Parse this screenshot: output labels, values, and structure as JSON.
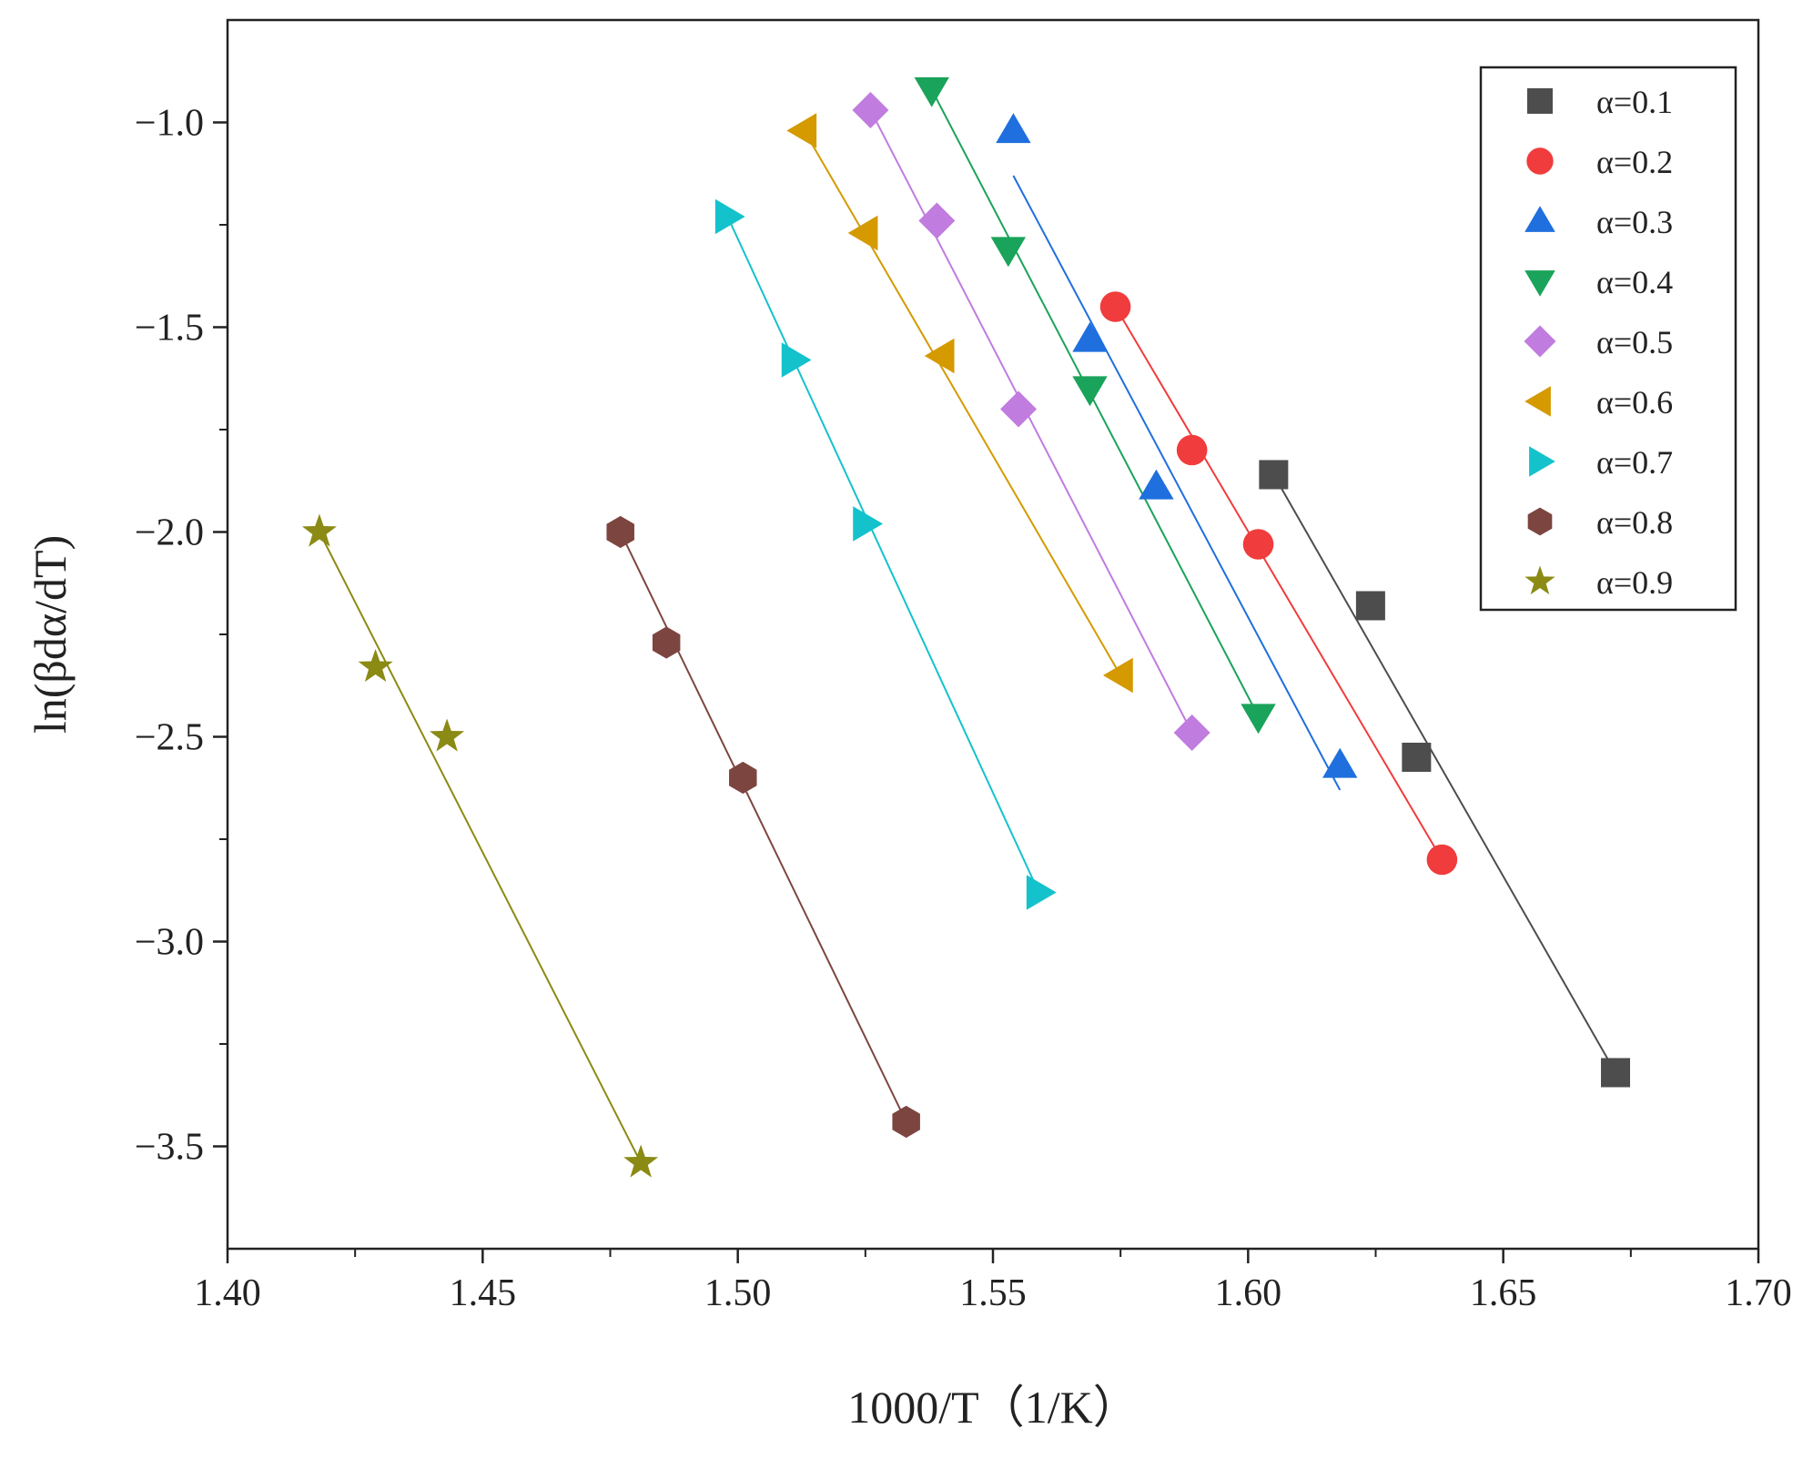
{
  "chart_data": {
    "type": "scatter",
    "xlabel": "1000/T（1/K）",
    "ylabel": "ln(βdα/dT)",
    "xlim": [
      1.4,
      1.7
    ],
    "ylim": [
      -3.75,
      -0.75
    ],
    "xticks": [
      1.4,
      1.45,
      1.5,
      1.55,
      1.6,
      1.65,
      1.7
    ],
    "xtick_labels": [
      "1.40",
      "1.45",
      "1.50",
      "1.55",
      "1.60",
      "1.65",
      "1.70"
    ],
    "yticks": [
      -1.0,
      -1.5,
      -2.0,
      -2.5,
      -3.0,
      -3.5
    ],
    "ytick_labels": [
      "−1.0",
      "−1.5",
      "−2.0",
      "−2.5",
      "−3.0",
      "−3.5"
    ],
    "legend_position": "top-right",
    "series": [
      {
        "name": "α=0.1",
        "color": "#4d4d4d",
        "marker": "square",
        "x": [
          1.605,
          1.624,
          1.633,
          1.672
        ],
        "y": [
          -1.86,
          -2.18,
          -2.55,
          -3.32
        ],
        "fit": [
          [
            1.605,
            -1.86
          ],
          [
            1.672,
            -3.32
          ]
        ]
      },
      {
        "name": "α=0.2",
        "color": "#f03c3c",
        "marker": "circle",
        "x": [
          1.574,
          1.589,
          1.602,
          1.638
        ],
        "y": [
          -1.45,
          -1.8,
          -2.03,
          -2.8
        ],
        "fit": [
          [
            1.574,
            -1.45
          ],
          [
            1.638,
            -2.8
          ]
        ]
      },
      {
        "name": "α=0.3",
        "color": "#1f6fde",
        "marker": "triangle-up",
        "x": [
          1.554,
          1.569,
          1.582,
          1.618
        ],
        "y": [
          -1.02,
          -1.53,
          -1.89,
          -2.57
        ],
        "fit": [
          [
            1.554,
            -1.13
          ],
          [
            1.618,
            -2.63
          ]
        ]
      },
      {
        "name": "α=0.4",
        "color": "#1aa35a",
        "marker": "triangle-down",
        "x": [
          1.538,
          1.553,
          1.569,
          1.602
        ],
        "y": [
          -0.92,
          -1.31,
          -1.65,
          -2.45
        ],
        "fit": [
          [
            1.538,
            -0.92
          ],
          [
            1.602,
            -2.45
          ]
        ]
      },
      {
        "name": "α=0.5",
        "color": "#c07cdf",
        "marker": "diamond",
        "x": [
          1.526,
          1.539,
          1.555,
          1.589
        ],
        "y": [
          -0.97,
          -1.24,
          -1.7,
          -2.49
        ],
        "fit": [
          [
            1.526,
            -0.97
          ],
          [
            1.589,
            -2.49
          ]
        ]
      },
      {
        "name": "α=0.6",
        "color": "#d49a00",
        "marker": "triangle-left",
        "x": [
          1.513,
          1.525,
          1.54,
          1.575
        ],
        "y": [
          -1.02,
          -1.27,
          -1.57,
          -2.35
        ],
        "fit": [
          [
            1.513,
            -1.02
          ],
          [
            1.575,
            -2.35
          ]
        ]
      },
      {
        "name": "α=0.7",
        "color": "#14c2cc",
        "marker": "triangle-right",
        "x": [
          1.498,
          1.511,
          1.525,
          1.559
        ],
        "y": [
          -1.23,
          -1.58,
          -1.98,
          -2.88
        ],
        "fit": [
          [
            1.498,
            -1.23
          ],
          [
            1.559,
            -2.88
          ]
        ]
      },
      {
        "name": "α=0.8",
        "color": "#7d4540",
        "marker": "hexagon",
        "x": [
          1.477,
          1.486,
          1.501,
          1.533
        ],
        "y": [
          -2.0,
          -2.27,
          -2.6,
          -3.44
        ],
        "fit": [
          [
            1.477,
            -2.0
          ],
          [
            1.533,
            -3.44
          ]
        ]
      },
      {
        "name": "α=0.9",
        "color": "#8b8a14",
        "marker": "star",
        "x": [
          1.418,
          1.429,
          1.443,
          1.481
        ],
        "y": [
          -2.0,
          -2.33,
          -2.5,
          -3.54
        ],
        "fit": [
          [
            1.418,
            -2.0
          ],
          [
            1.481,
            -3.54
          ]
        ]
      }
    ]
  }
}
